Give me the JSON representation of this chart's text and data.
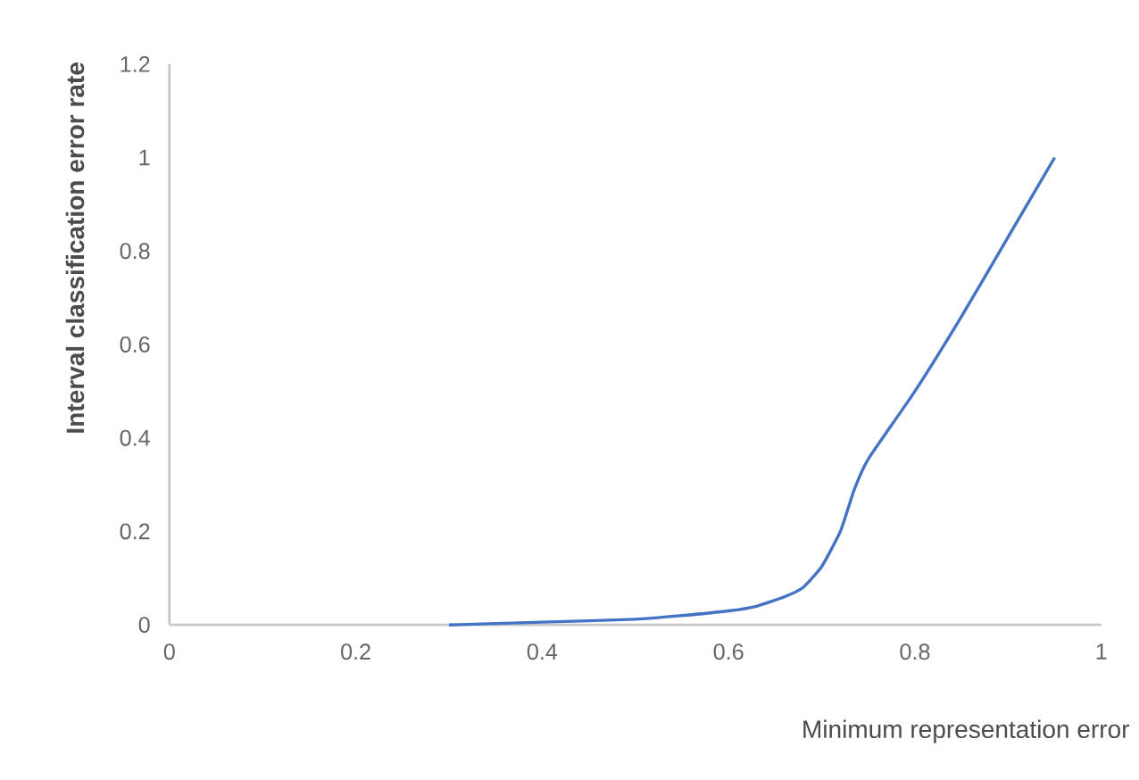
{
  "chart_data": {
    "type": "line",
    "xlabel": "Minimum representation error",
    "ylabel": "Interval classification error rate",
    "x": [
      0.3,
      0.4,
      0.5,
      0.55,
      0.6,
      0.63,
      0.66,
      0.68,
      0.7,
      0.72,
      0.735,
      0.75,
      0.8,
      0.85,
      0.9,
      0.95
    ],
    "series": [
      {
        "color": "#4472c4",
        "values": [
          0,
          0.006,
          0.012,
          0.02,
          0.03,
          0.04,
          0.06,
          0.08,
          0.125,
          0.2,
          0.29,
          0.355,
          0.5,
          0.66,
          0.83,
          1.0
        ]
      }
    ],
    "xlim": [
      0,
      1
    ],
    "ylim": [
      0,
      1.2
    ],
    "xticks": [
      0,
      0.2,
      0.4,
      0.6,
      0.8,
      1
    ],
    "yticks": [
      0,
      0.2,
      0.4,
      0.6,
      0.8,
      1,
      1.2
    ],
    "grid": false,
    "legend": false,
    "marker": "none",
    "line_style": "solid"
  }
}
